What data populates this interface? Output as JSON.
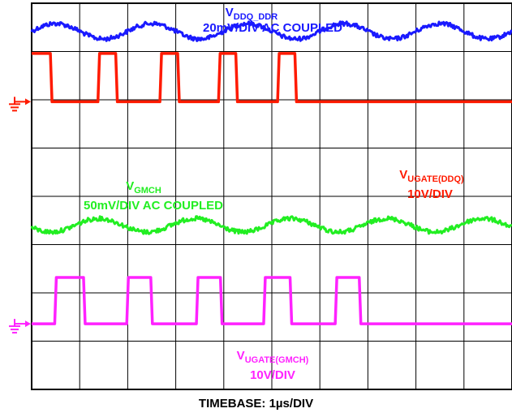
{
  "chart_data": {
    "type": "line",
    "grid": true,
    "divisions": {
      "x": 10,
      "y": 8
    },
    "x_unit_per_div": "1µs",
    "series": [
      {
        "name_main": "V",
        "name_sub": "DDQ_DDR",
        "scale": "20mV/DIV AC COUPLED",
        "color": "#1a1aff",
        "kind": "ripple",
        "center_div": 0.58,
        "amplitude_div": 0.16,
        "period_div": 2.0,
        "phase_div": 0.0
      },
      {
        "name_main": "V",
        "name_sub": "UGATE(DDQ)",
        "scale": "10V/DIV",
        "color": "#ff1a00",
        "kind": "pulse",
        "high_div": 1.04,
        "low_div": 2.04,
        "rise_times_div": [
          -1.0,
          1.38,
          2.67,
          3.89,
          5.12
        ],
        "fall_times_div": [
          0.39,
          1.75,
          3.04,
          4.25,
          5.48
        ],
        "start_high": true,
        "ground_marker_div": 2.04
      },
      {
        "name_main": "V",
        "name_sub": "GMCH",
        "scale": "50mV/DIV AC COUPLED",
        "color": "#22ee22",
        "kind": "ripple",
        "center_div": 4.6,
        "amplitude_div": 0.14,
        "period_div": 2.0,
        "phase_div": 0.9
      },
      {
        "name_main": "V",
        "name_sub": "UGATE(GMCH)",
        "scale": "10V/DIV",
        "color": "#ff22ff",
        "kind": "pulse",
        "high_div": 5.68,
        "low_div": 6.64,
        "rise_times_div": [
          0.48,
          1.98,
          3.43,
          4.83,
          6.32
        ],
        "fall_times_div": [
          1.08,
          2.48,
          3.93,
          5.38,
          6.82
        ],
        "start_high": false,
        "ground_marker_div": 6.64
      }
    ],
    "timebase_label": "TIMEBASE: 1µs/DIV"
  }
}
